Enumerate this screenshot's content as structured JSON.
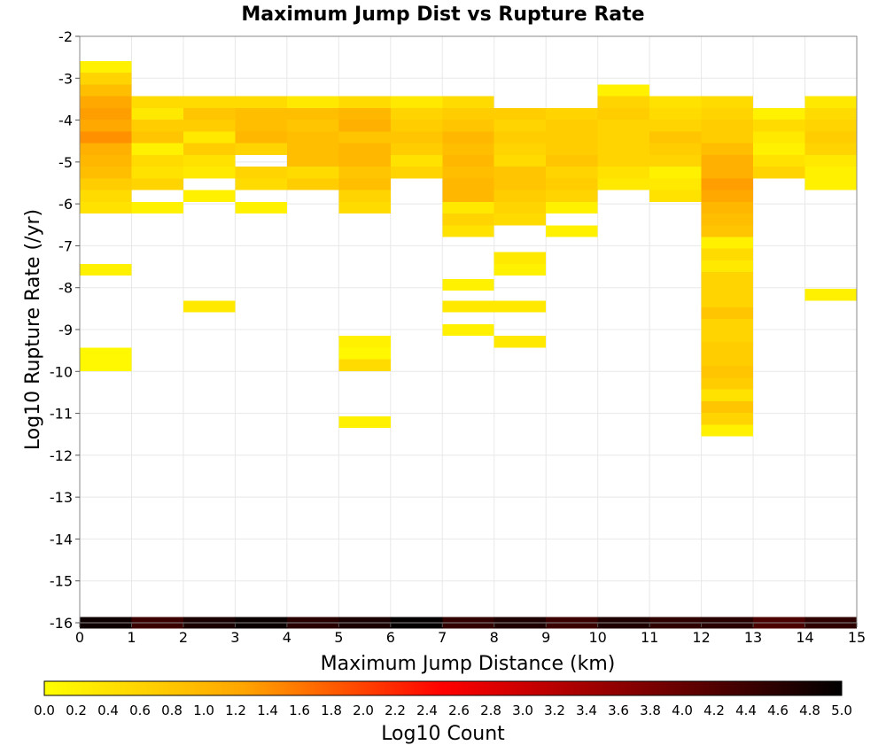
{
  "chart_data": {
    "type": "heatmap",
    "title": "Maximum Jump Dist vs Rupture Rate",
    "xlabel": "Maximum Jump Distance (km)",
    "ylabel": "Log10 Rupture Rate (/yr)",
    "xlim": [
      0,
      15
    ],
    "ylim": [
      -16,
      -2
    ],
    "x_ticks": [
      "0",
      "1",
      "2",
      "3",
      "4",
      "5",
      "6",
      "7",
      "8",
      "9",
      "10",
      "11",
      "12",
      "13",
      "14",
      "15"
    ],
    "y_ticks": [
      "-2",
      "-3",
      "-4",
      "-5",
      "-6",
      "-7",
      "-8",
      "-9",
      "-10",
      "-11",
      "-12",
      "-13",
      "-14",
      "-15",
      "-16"
    ],
    "grid": true,
    "bin_width_x": 1,
    "bin_height_y": 0.28,
    "colorbar": {
      "label": "Log10 Count",
      "range": [
        0.0,
        5.0
      ],
      "ticks": [
        "0.0",
        "0.2",
        "0.4",
        "0.6",
        "0.8",
        "1.0",
        "1.2",
        "1.4",
        "1.6",
        "1.8",
        "2.0",
        "2.2",
        "2.4",
        "2.6",
        "2.8",
        "3.0",
        "3.2",
        "3.4",
        "3.6",
        "3.8",
        "4.0",
        "4.2",
        "4.4",
        "4.6",
        "4.8",
        "5.0"
      ],
      "colors": [
        "#ffff00",
        "#ffa500",
        "#ff0000",
        "#800000",
        "#000000"
      ]
    },
    "cells": [
      [
        0,
        -2.73,
        0.2
      ],
      [
        0,
        -3.01,
        0.6
      ],
      [
        0,
        -3.29,
        0.9
      ],
      [
        0,
        -3.57,
        1.2
      ],
      [
        0,
        -3.85,
        1.3
      ],
      [
        0,
        -4.13,
        1.2
      ],
      [
        0,
        -4.41,
        1.4
      ],
      [
        0,
        -4.69,
        1.1
      ],
      [
        0,
        -4.97,
        1.0
      ],
      [
        0,
        -5.25,
        0.9
      ],
      [
        0,
        -5.53,
        0.7
      ],
      [
        0,
        -5.81,
        0.5
      ],
      [
        0,
        -6.09,
        0.4
      ],
      [
        0,
        -7.57,
        0.2
      ],
      [
        0,
        -9.57,
        0.1
      ],
      [
        0,
        -9.85,
        0.1
      ],
      [
        1,
        -3.57,
        0.5
      ],
      [
        1,
        -3.85,
        0.3
      ],
      [
        1,
        -4.13,
        0.7
      ],
      [
        1,
        -4.41,
        0.8
      ],
      [
        1,
        -4.69,
        0.2
      ],
      [
        1,
        -4.97,
        0.5
      ],
      [
        1,
        -5.25,
        0.4
      ],
      [
        1,
        -5.53,
        0.6
      ],
      [
        1,
        -6.09,
        0.2
      ],
      [
        2,
        -3.57,
        0.5
      ],
      [
        2,
        -3.85,
        0.8
      ],
      [
        2,
        -4.13,
        0.7
      ],
      [
        2,
        -4.41,
        0.3
      ],
      [
        2,
        -4.69,
        0.7
      ],
      [
        2,
        -4.97,
        0.4
      ],
      [
        2,
        -5.25,
        0.3
      ],
      [
        2,
        -5.81,
        0.2
      ],
      [
        2,
        -8.45,
        0.3
      ],
      [
        3,
        -3.57,
        0.5
      ],
      [
        3,
        -3.85,
        0.9
      ],
      [
        3,
        -4.13,
        0.9
      ],
      [
        3,
        -4.41,
        1.0
      ],
      [
        3,
        -4.69,
        0.6
      ],
      [
        3,
        -5.25,
        0.6
      ],
      [
        3,
        -5.53,
        0.5
      ],
      [
        3,
        -6.09,
        0.2
      ],
      [
        4,
        -3.57,
        0.3
      ],
      [
        4,
        -3.85,
        0.9
      ],
      [
        4,
        -4.13,
        0.8
      ],
      [
        4,
        -4.41,
        0.9
      ],
      [
        4,
        -4.69,
        0.9
      ],
      [
        4,
        -4.97,
        0.9
      ],
      [
        4,
        -5.25,
        0.5
      ],
      [
        4,
        -5.53,
        0.7
      ],
      [
        5,
        -3.57,
        0.5
      ],
      [
        5,
        -3.85,
        1.0
      ],
      [
        5,
        -4.13,
        1.1
      ],
      [
        5,
        -4.41,
        0.8
      ],
      [
        5,
        -4.69,
        1.0
      ],
      [
        5,
        -4.97,
        1.0
      ],
      [
        5,
        -5.25,
        0.8
      ],
      [
        5,
        -5.53,
        0.9
      ],
      [
        5,
        -5.81,
        0.6
      ],
      [
        5,
        -6.09,
        0.5
      ],
      [
        5,
        -9.29,
        0.2
      ],
      [
        5,
        -9.57,
        0.1
      ],
      [
        5,
        -9.85,
        0.5
      ],
      [
        5,
        -11.21,
        0.2
      ],
      [
        6,
        -3.57,
        0.3
      ],
      [
        6,
        -3.85,
        0.6
      ],
      [
        6,
        -4.13,
        0.7
      ],
      [
        6,
        -4.41,
        0.8
      ],
      [
        6,
        -4.69,
        0.7
      ],
      [
        6,
        -4.97,
        0.4
      ],
      [
        6,
        -5.25,
        0.6
      ],
      [
        7,
        -3.57,
        0.5
      ],
      [
        7,
        -3.85,
        0.7
      ],
      [
        7,
        -4.13,
        0.8
      ],
      [
        7,
        -4.41,
        1.0
      ],
      [
        7,
        -4.69,
        0.9
      ],
      [
        7,
        -4.97,
        1.0
      ],
      [
        7,
        -5.25,
        0.9
      ],
      [
        7,
        -5.53,
        1.0
      ],
      [
        7,
        -5.81,
        1.0
      ],
      [
        7,
        -6.09,
        0.3
      ],
      [
        7,
        -6.37,
        0.6
      ],
      [
        7,
        -6.65,
        0.4
      ],
      [
        7,
        -7.93,
        0.2
      ],
      [
        7,
        -8.45,
        0.3
      ],
      [
        7,
        -9.01,
        0.2
      ],
      [
        8,
        -3.85,
        0.7
      ],
      [
        8,
        -4.13,
        0.6
      ],
      [
        8,
        -4.41,
        0.7
      ],
      [
        8,
        -4.69,
        0.6
      ],
      [
        8,
        -4.97,
        0.5
      ],
      [
        8,
        -5.25,
        0.8
      ],
      [
        8,
        -5.53,
        0.8
      ],
      [
        8,
        -5.81,
        0.7
      ],
      [
        8,
        -6.09,
        0.6
      ],
      [
        8,
        -6.37,
        0.5
      ],
      [
        8,
        -7.29,
        0.3
      ],
      [
        8,
        -7.57,
        0.2
      ],
      [
        8,
        -8.45,
        0.3
      ],
      [
        8,
        -9.29,
        0.3
      ],
      [
        9,
        -3.85,
        0.6
      ],
      [
        9,
        -4.13,
        0.7
      ],
      [
        9,
        -4.41,
        0.7
      ],
      [
        9,
        -4.69,
        0.7
      ],
      [
        9,
        -4.97,
        0.8
      ],
      [
        9,
        -5.25,
        0.6
      ],
      [
        9,
        -5.53,
        0.7
      ],
      [
        9,
        -5.81,
        0.6
      ],
      [
        9,
        -6.09,
        0.2
      ],
      [
        9,
        -6.65,
        0.2
      ],
      [
        10,
        -3.29,
        0.2
      ],
      [
        10,
        -3.57,
        0.6
      ],
      [
        10,
        -3.85,
        0.7
      ],
      [
        10,
        -4.13,
        0.6
      ],
      [
        10,
        -4.41,
        0.6
      ],
      [
        10,
        -4.69,
        0.6
      ],
      [
        10,
        -4.97,
        0.6
      ],
      [
        10,
        -5.25,
        0.4
      ],
      [
        10,
        -5.53,
        0.3
      ],
      [
        11,
        -3.57,
        0.4
      ],
      [
        11,
        -3.85,
        0.5
      ],
      [
        11,
        -4.13,
        0.6
      ],
      [
        11,
        -4.41,
        0.8
      ],
      [
        11,
        -4.69,
        0.7
      ],
      [
        11,
        -4.97,
        0.6
      ],
      [
        11,
        -5.25,
        0.2
      ],
      [
        11,
        -5.53,
        0.3
      ],
      [
        11,
        -5.81,
        0.4
      ],
      [
        12,
        -3.57,
        0.5
      ],
      [
        12,
        -3.85,
        0.6
      ],
      [
        12,
        -4.13,
        0.7
      ],
      [
        12,
        -4.41,
        0.7
      ],
      [
        12,
        -4.69,
        0.9
      ],
      [
        12,
        -4.97,
        1.1
      ],
      [
        12,
        -5.25,
        1.1
      ],
      [
        12,
        -5.53,
        1.3
      ],
      [
        12,
        -5.81,
        1.2
      ],
      [
        12,
        -6.09,
        1.0
      ],
      [
        12,
        -6.37,
        0.9
      ],
      [
        12,
        -6.65,
        0.8
      ],
      [
        12,
        -6.93,
        0.2
      ],
      [
        12,
        -7.21,
        0.5
      ],
      [
        12,
        -7.49,
        0.3
      ],
      [
        12,
        -7.77,
        0.6
      ],
      [
        12,
        -8.05,
        0.6
      ],
      [
        12,
        -8.33,
        0.6
      ],
      [
        12,
        -8.61,
        0.8
      ],
      [
        12,
        -8.89,
        0.6
      ],
      [
        12,
        -9.17,
        0.6
      ],
      [
        12,
        -9.45,
        0.7
      ],
      [
        12,
        -9.73,
        0.7
      ],
      [
        12,
        -10.01,
        0.8
      ],
      [
        12,
        -10.29,
        0.7
      ],
      [
        12,
        -10.57,
        0.4
      ],
      [
        12,
        -10.85,
        0.8
      ],
      [
        12,
        -11.13,
        0.6
      ],
      [
        12,
        -11.41,
        0.2
      ],
      [
        13,
        -3.85,
        0.2
      ],
      [
        13,
        -4.13,
        0.5
      ],
      [
        13,
        -4.41,
        0.3
      ],
      [
        13,
        -4.69,
        0.2
      ],
      [
        13,
        -4.97,
        0.4
      ],
      [
        13,
        -5.25,
        0.6
      ],
      [
        14,
        -3.57,
        0.3
      ],
      [
        14,
        -3.85,
        0.5
      ],
      [
        14,
        -4.13,
        0.6
      ],
      [
        14,
        -4.41,
        0.7
      ],
      [
        14,
        -4.69,
        0.6
      ],
      [
        14,
        -4.97,
        0.3
      ],
      [
        14,
        -5.25,
        0.2
      ],
      [
        14,
        -5.53,
        0.2
      ],
      [
        14,
        -8.17,
        0.2
      ]
    ],
    "bottom_row": {
      "y": -16,
      "values": [
        4.85,
        4.4,
        4.75,
        4.9,
        4.6,
        4.75,
        4.95,
        4.5,
        4.7,
        4.4,
        4.7,
        4.55,
        4.6,
        4.25,
        4.55
      ]
    }
  }
}
